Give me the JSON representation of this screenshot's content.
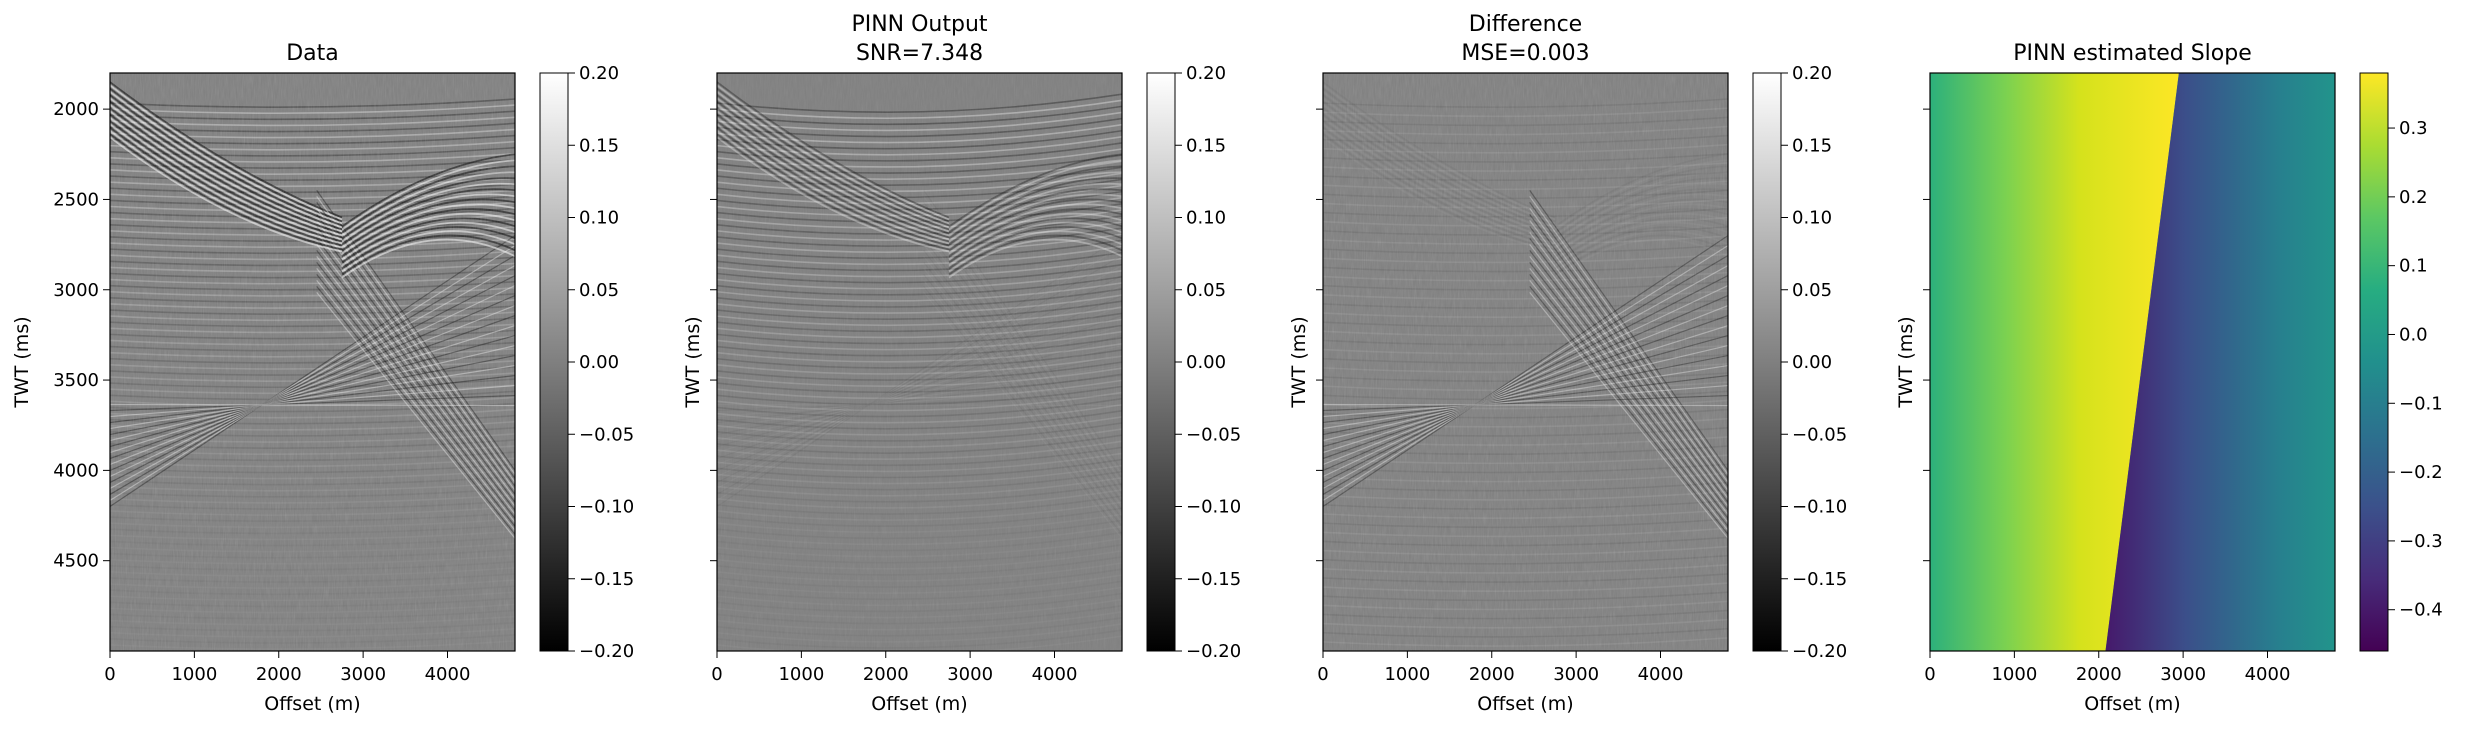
{
  "chart_data": [
    {
      "type": "heatmap",
      "title": "Data",
      "title_line2": "",
      "xlabel": "Offset (m)",
      "ylabel": "TWT (ms)",
      "xlim": [
        0,
        4800
      ],
      "ylim": [
        5000,
        1800
      ],
      "x_ticks": [
        0,
        1000,
        2000,
        3000,
        4000
      ],
      "y_ticks": [
        2000,
        2500,
        3000,
        3500,
        4000,
        4500
      ],
      "y_ticklabels_shown": true,
      "colormap": "gray",
      "colorbar": {
        "min": -0.2,
        "max": 0.2,
        "ticks": [
          0.2,
          0.15,
          0.1,
          0.05,
          0.0,
          -0.05,
          -0.1,
          -0.15,
          -0.2
        ],
        "tick_labels": [
          "0.20",
          "0.15",
          "0.10",
          "0.05",
          "0.00",
          "−0.05",
          "−0.10",
          "−0.15",
          "−0.20"
        ]
      }
    },
    {
      "type": "heatmap",
      "title": "PINN Output",
      "title_line2": " SNR=7.348",
      "xlabel": "Offset (m)",
      "ylabel": "TWT (ms)",
      "xlim": [
        0,
        4800
      ],
      "ylim": [
        5000,
        1800
      ],
      "x_ticks": [
        0,
        1000,
        2000,
        3000,
        4000
      ],
      "y_ticks": [
        2000,
        2500,
        3000,
        3500,
        4000,
        4500
      ],
      "y_ticklabels_shown": false,
      "colormap": "gray",
      "colorbar": {
        "min": -0.2,
        "max": 0.2,
        "ticks": [
          0.2,
          0.15,
          0.1,
          0.05,
          0.0,
          -0.05,
          -0.1,
          -0.15,
          -0.2
        ],
        "tick_labels": [
          "0.20",
          "0.15",
          "0.10",
          "0.05",
          "0.00",
          "−0.05",
          "−0.10",
          "−0.15",
          "−0.20"
        ]
      }
    },
    {
      "type": "heatmap",
      "title": "Difference",
      "title_line2": "MSE=0.003",
      "xlabel": "Offset (m)",
      "ylabel": "TWT (ms)",
      "xlim": [
        0,
        4800
      ],
      "ylim": [
        5000,
        1800
      ],
      "x_ticks": [
        0,
        1000,
        2000,
        3000,
        4000
      ],
      "y_ticks": [
        2000,
        2500,
        3000,
        3500,
        4000,
        4500
      ],
      "y_ticklabels_shown": false,
      "colormap": "gray",
      "colorbar": {
        "min": -0.2,
        "max": 0.2,
        "ticks": [
          0.2,
          0.15,
          0.1,
          0.05,
          0.0,
          -0.05,
          -0.1,
          -0.15,
          -0.2
        ],
        "tick_labels": [
          "0.20",
          "0.15",
          "0.10",
          "0.05",
          "0.00",
          "−0.05",
          "−0.10",
          "−0.15",
          "−0.20"
        ]
      }
    },
    {
      "type": "heatmap",
      "title": "PINN estimated Slope",
      "title_line2": "",
      "xlabel": "Offset (m)",
      "ylabel": "TWT (ms)",
      "xlim": [
        0,
        4800
      ],
      "ylim": [
        5000,
        1800
      ],
      "x_ticks": [
        0,
        1000,
        2000,
        3000,
        4000
      ],
      "y_ticks": [
        2000,
        2500,
        3000,
        3500,
        4000,
        4500
      ],
      "y_ticklabels_shown": false,
      "colormap": "viridis",
      "colorbar": {
        "min": -0.46,
        "max": 0.38,
        "ticks": [
          0.3,
          0.2,
          0.1,
          0.0,
          -0.1,
          -0.2,
          -0.3,
          -0.4
        ],
        "tick_labels": [
          "0.3",
          "0.2",
          "0.1",
          "0.0",
          "−0.1",
          "−0.2",
          "−0.3",
          "−0.4"
        ]
      }
    }
  ]
}
